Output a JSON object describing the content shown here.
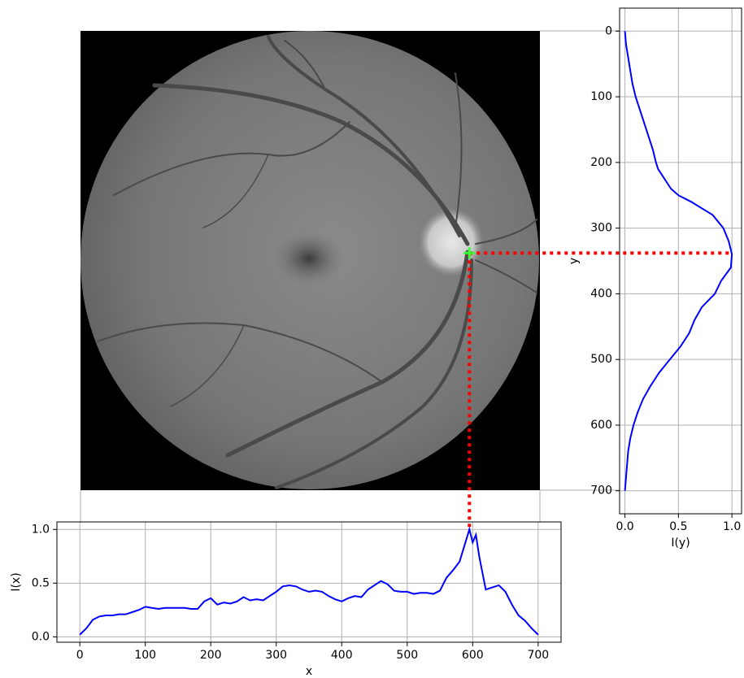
{
  "chart_data": [
    {
      "type": "line",
      "color": "#0000ff",
      "xlabel": "x",
      "ylabel": "I(x)",
      "x": [
        0,
        10,
        20,
        30,
        40,
        50,
        60,
        70,
        80,
        90,
        100,
        110,
        120,
        130,
        140,
        150,
        160,
        170,
        180,
        190,
        200,
        210,
        220,
        230,
        240,
        250,
        260,
        270,
        280,
        290,
        300,
        310,
        320,
        330,
        340,
        350,
        360,
        370,
        380,
        390,
        400,
        410,
        420,
        430,
        440,
        450,
        460,
        470,
        480,
        490,
        500,
        510,
        520,
        530,
        540,
        550,
        560,
        570,
        580,
        590,
        595,
        600,
        605,
        610,
        620,
        630,
        640,
        650,
        660,
        670,
        680,
        690,
        700
      ],
      "values": [
        0.02,
        0.08,
        0.16,
        0.19,
        0.2,
        0.2,
        0.21,
        0.21,
        0.23,
        0.25,
        0.28,
        0.27,
        0.26,
        0.27,
        0.27,
        0.27,
        0.27,
        0.26,
        0.26,
        0.33,
        0.36,
        0.3,
        0.32,
        0.31,
        0.33,
        0.37,
        0.34,
        0.35,
        0.34,
        0.38,
        0.42,
        0.47,
        0.48,
        0.47,
        0.44,
        0.42,
        0.43,
        0.42,
        0.38,
        0.35,
        0.33,
        0.36,
        0.38,
        0.37,
        0.44,
        0.48,
        0.52,
        0.49,
        0.43,
        0.42,
        0.42,
        0.4,
        0.41,
        0.41,
        0.4,
        0.43,
        0.55,
        0.62,
        0.7,
        0.9,
        1.0,
        0.88,
        0.95,
        0.75,
        0.44,
        0.46,
        0.48,
        0.42,
        0.3,
        0.2,
        0.15,
        0.08,
        0.02
      ],
      "xlim": [
        -35,
        735
      ],
      "ylim": [
        -0.05,
        1.07
      ],
      "xticks": [
        0,
        100,
        200,
        300,
        400,
        500,
        600,
        700
      ],
      "yticks": [
        {
          "value": 0,
          "label": "0.0"
        },
        {
          "value": 0.5,
          "label": "0.5"
        },
        {
          "value": 1,
          "label": "1.0"
        }
      ],
      "grid": true
    },
    {
      "type": "line",
      "orientation": "vertical",
      "color": "#0000ff",
      "xlabel": "I(y)",
      "ylabel": "y",
      "y": [
        0,
        20,
        40,
        60,
        80,
        100,
        120,
        140,
        160,
        180,
        200,
        210,
        220,
        240,
        250,
        260,
        280,
        300,
        320,
        340,
        360,
        380,
        400,
        420,
        440,
        460,
        480,
        500,
        520,
        540,
        560,
        580,
        600,
        620,
        640,
        660,
        680,
        700
      ],
      "values": [
        0.0,
        0.01,
        0.03,
        0.05,
        0.07,
        0.1,
        0.14,
        0.18,
        0.22,
        0.26,
        0.29,
        0.31,
        0.35,
        0.43,
        0.5,
        0.62,
        0.82,
        0.92,
        0.97,
        1.0,
        0.99,
        0.9,
        0.84,
        0.72,
        0.65,
        0.6,
        0.52,
        0.42,
        0.32,
        0.24,
        0.17,
        0.12,
        0.08,
        0.05,
        0.03,
        0.02,
        0.01,
        0.0
      ],
      "xlim": [
        -0.05,
        1.09
      ],
      "ylim": [
        -35,
        735
      ],
      "y_inverted": true,
      "xticks": [
        {
          "value": 0,
          "label": "0.0"
        },
        {
          "value": 0.5,
          "label": "0.5"
        },
        {
          "value": 1,
          "label": "1.0"
        }
      ],
      "yticks": [
        0,
        100,
        200,
        300,
        400,
        500,
        600,
        700
      ],
      "grid": true
    }
  ],
  "marker": {
    "x": 595,
    "y": 338,
    "color": "#33ff33",
    "guide_color": "#ff0000"
  }
}
